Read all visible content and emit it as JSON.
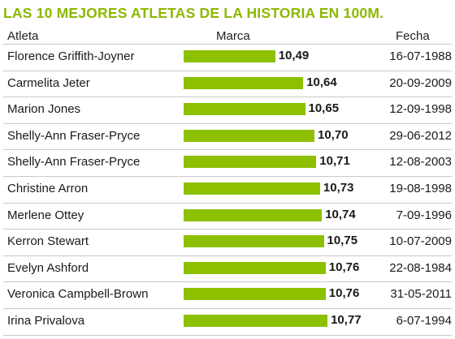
{
  "colors": {
    "title": "#8cb800",
    "bar": "#8dc000",
    "separator": "#c9c9c9"
  },
  "chart_data": {
    "type": "bar",
    "orientation": "horizontal",
    "title": "LAS 10 MEJORES ATLETAS DE LA HISTORIA EN 100M.",
    "headers": {
      "athlete": "Atleta",
      "mark": "Marca",
      "date": "Fecha"
    },
    "categories": [
      "Florence Griffith-Joyner",
      "Carmelita Jeter",
      "Marion Jones",
      "Shelly-Ann Fraser-Pryce",
      "Shelly-Ann Fraser-Pryce",
      "Christine Arron",
      "Merlene Ottey",
      "Kerron Stewart",
      "Evelyn Ashford",
      "Veronica Campbell-Brown",
      "Irina Privalova"
    ],
    "values": [
      10.49,
      10.64,
      10.65,
      10.7,
      10.71,
      10.73,
      10.74,
      10.75,
      10.76,
      10.76,
      10.77
    ],
    "value_labels": [
      "10,49",
      "10,64",
      "10,65",
      "10,70",
      "10,71",
      "10,73",
      "10,74",
      "10,75",
      "10,76",
      "10,76",
      "10,77"
    ],
    "dates": [
      "16-07-1988",
      "20-09-2009",
      "12-09-1998",
      "29-06-2012",
      "12-08-2003",
      "19-08-1998",
      "7-09-1996",
      "10-07-2009",
      "22-08-1984",
      "31-05-2011",
      "6-07-1994"
    ]
  }
}
